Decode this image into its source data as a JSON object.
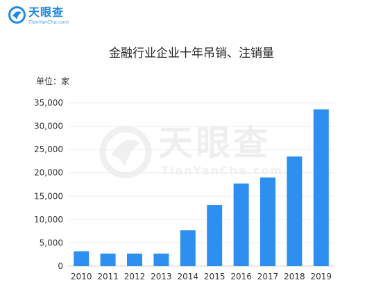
{
  "logo": {
    "name": "天眼查",
    "domain": "TianYanCha.com"
  },
  "watermark": {
    "name": "天眼查",
    "domain": "TianYanCha.com"
  },
  "colors": {
    "bar": "#2d8ff0",
    "brand": "#1e88e5"
  },
  "chart_data": {
    "type": "bar",
    "title": "金融行业企业十年吊销、注销量",
    "unit_label": "单位：家",
    "xlabel": "",
    "ylabel": "",
    "categories": [
      "2010",
      "2011",
      "2012",
      "2013",
      "2014",
      "2015",
      "2016",
      "2017",
      "2018",
      "2019"
    ],
    "values": [
      3200,
      2700,
      2700,
      2700,
      7700,
      13100,
      17700,
      19000,
      23500,
      33600
    ],
    "ylim": [
      0,
      35000
    ],
    "yticks": [
      0,
      5000,
      10000,
      15000,
      20000,
      25000,
      30000,
      35000
    ],
    "ytick_labels": [
      "0",
      "5,000",
      "10,000",
      "15,000",
      "20,000",
      "25,000",
      "30,000",
      "35,000"
    ],
    "grid": true,
    "legend": "none"
  }
}
